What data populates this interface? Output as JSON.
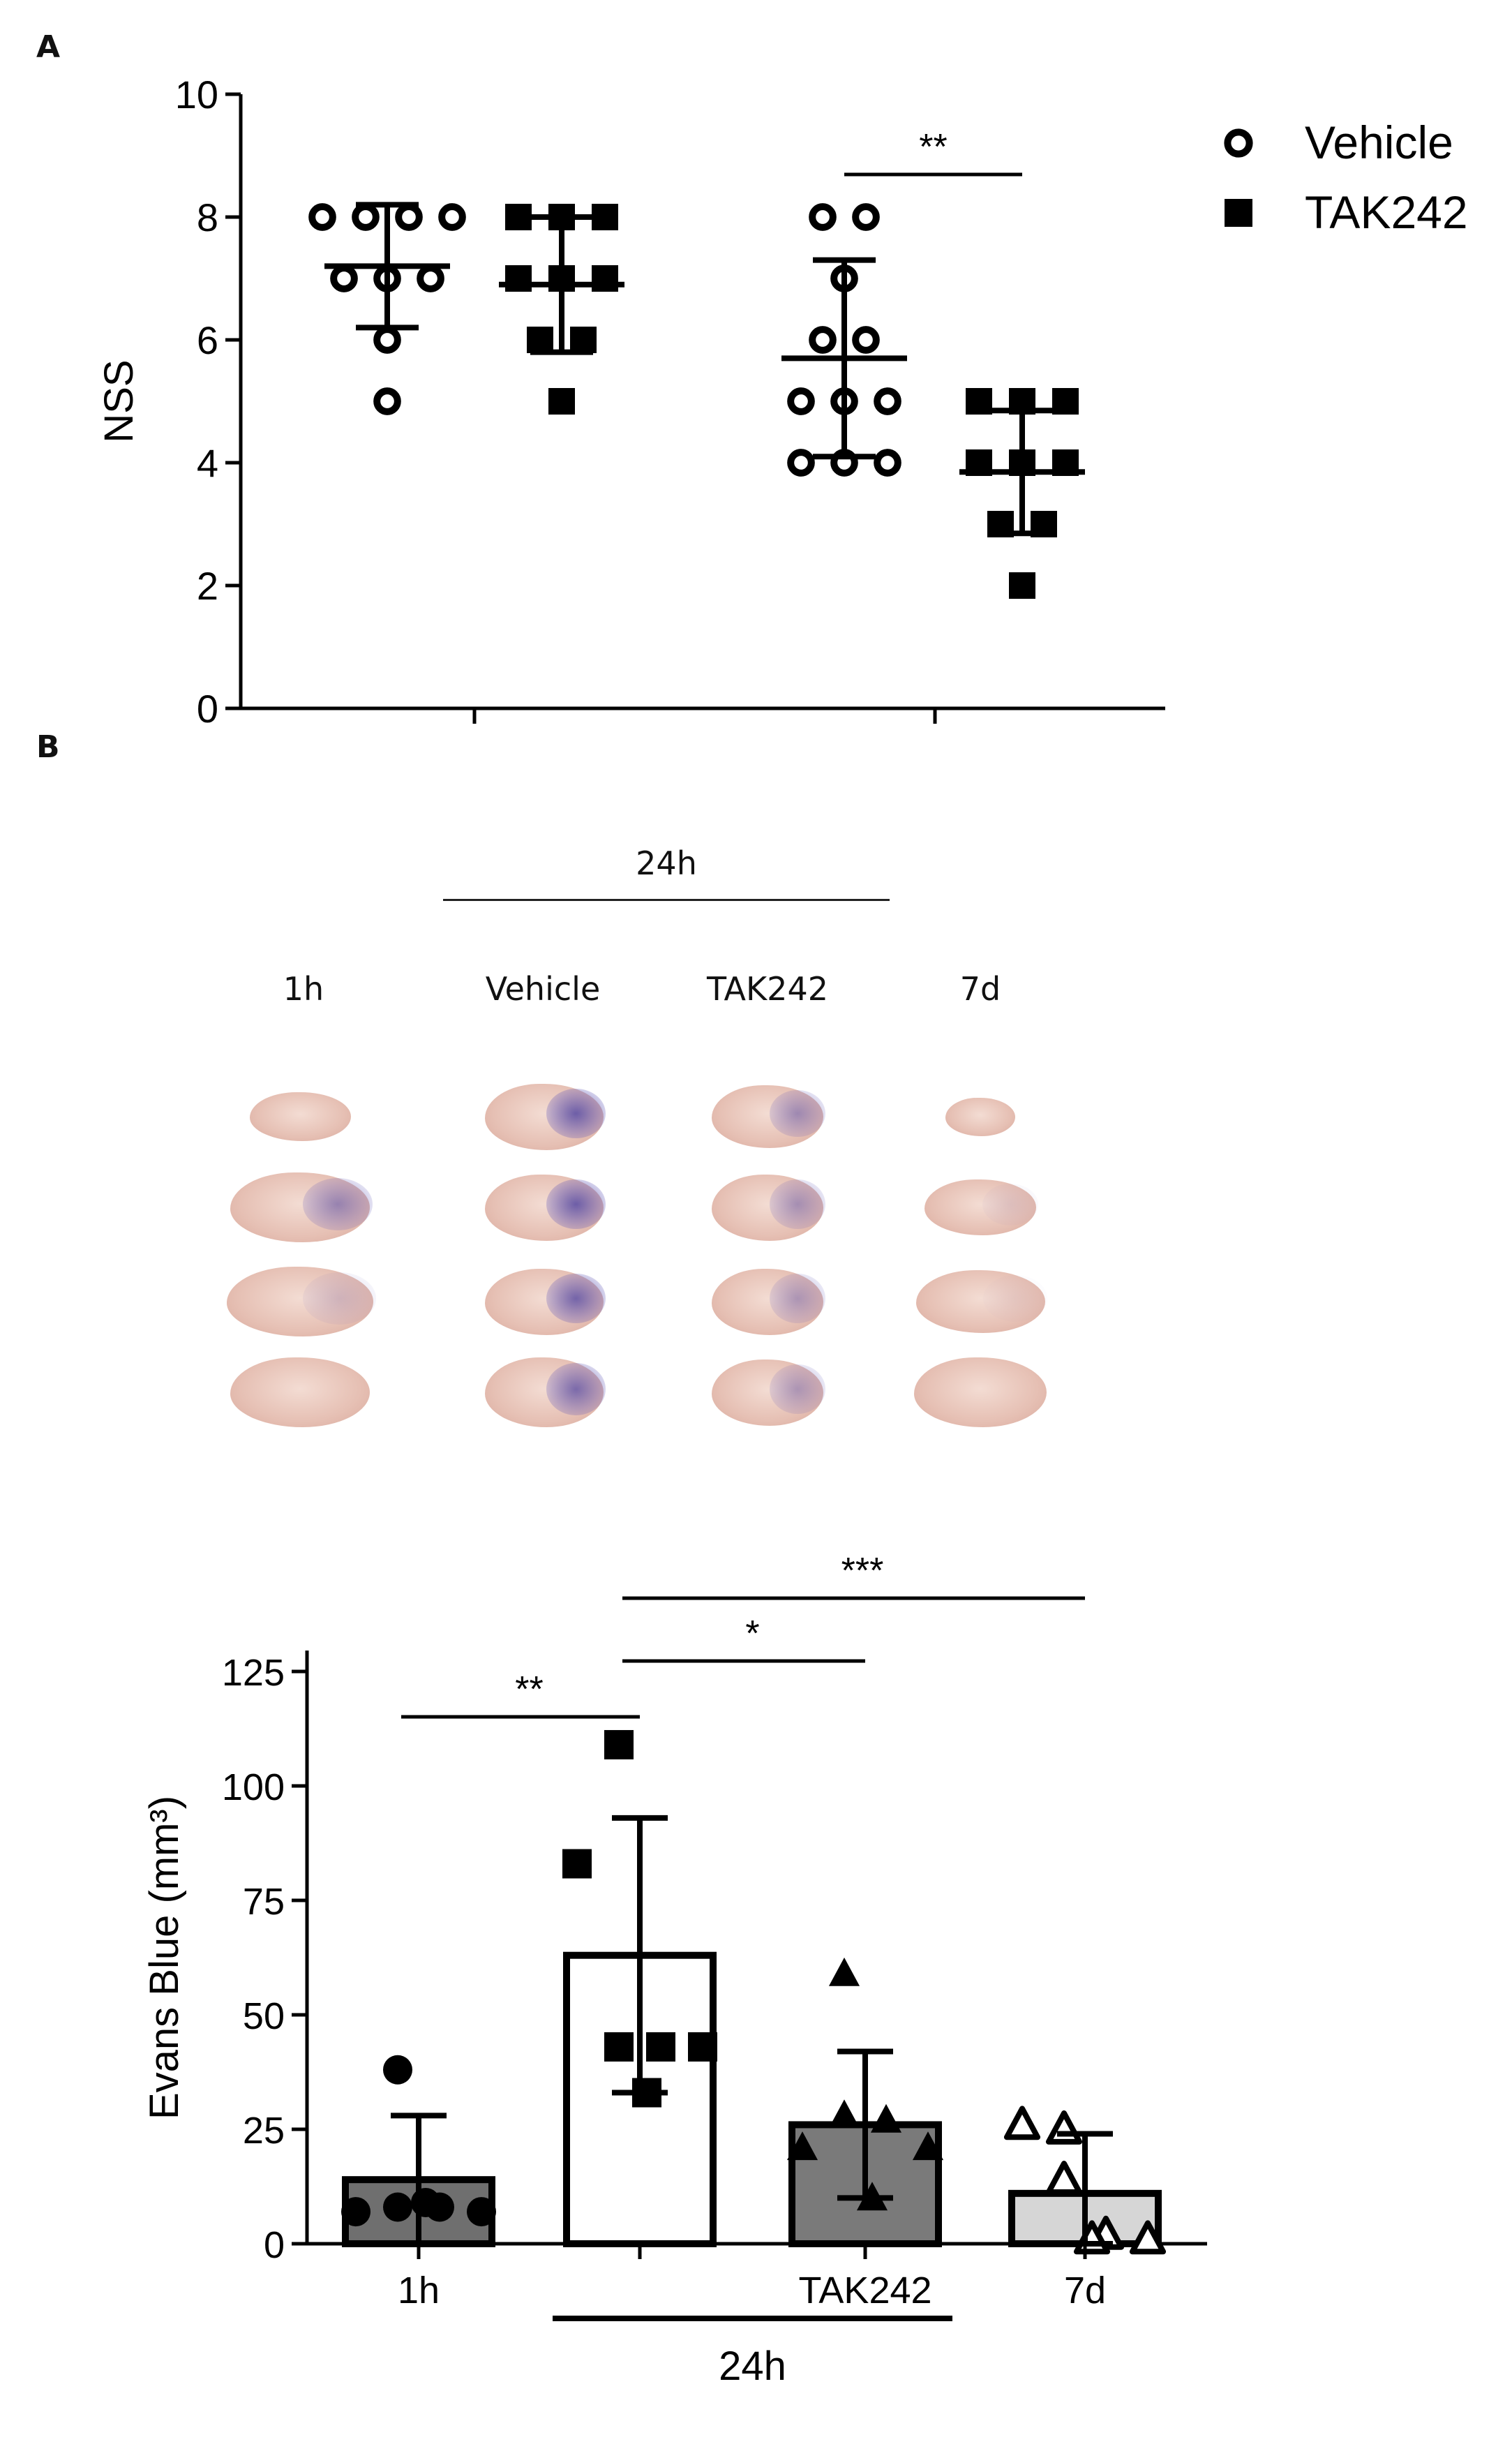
{
  "panels": {
    "a_label": "A",
    "b_label": "B"
  },
  "chart_data": [
    {
      "type": "scatter",
      "title": "",
      "ylabel": "NSS",
      "xlabel": "",
      "ylim": [
        0,
        10
      ],
      "yticks": [
        "0",
        "2",
        "4",
        "6",
        "8",
        "10"
      ],
      "legend": {
        "placement": "top-right",
        "entries": [
          {
            "name": "Vehicle",
            "marker": "open-circle"
          },
          {
            "name": "TAK242",
            "marker": "filled-square"
          }
        ]
      },
      "groups": [
        {
          "series": "Vehicle",
          "time": "early",
          "points": [
            8,
            8,
            8,
            8,
            7,
            7,
            7,
            6,
            5
          ],
          "mean": 7.2,
          "sd": 1.0
        },
        {
          "series": "TAK242",
          "time": "early",
          "points": [
            8,
            8,
            8,
            7,
            7,
            7,
            6,
            6,
            5
          ],
          "mean": 6.9,
          "sd": 1.1
        },
        {
          "series": "Vehicle",
          "time": "late",
          "points": [
            8,
            8,
            7,
            6,
            6,
            5,
            5,
            5,
            4,
            4,
            4
          ],
          "mean": 5.7,
          "sd": 1.6
        },
        {
          "series": "TAK242",
          "time": "late",
          "points": [
            5,
            5,
            5,
            4,
            4,
            4,
            3,
            3,
            2
          ],
          "mean": 3.85,
          "sd": 1.0
        }
      ],
      "significance": [
        {
          "label": "**",
          "between": [
            2,
            3
          ]
        }
      ]
    },
    {
      "type": "bar",
      "title": "",
      "ylabel": "Evans Blue (mm³)",
      "ylim": [
        0,
        125
      ],
      "yticks": [
        "0",
        "25",
        "50",
        "75",
        "100",
        "125"
      ],
      "categories": [
        "1h",
        "",
        "TAK242",
        "7d"
      ],
      "group_label": "24h",
      "group_span": [
        1,
        2
      ],
      "bars": [
        {
          "mean": 14,
          "sd": 14,
          "fill": "#6f6f6f",
          "marker": "filled-circle",
          "points": [
            38,
            7,
            8,
            8,
            7,
            9
          ]
        },
        {
          "mean": 63,
          "sd": 30,
          "fill": "#ffffff",
          "marker": "filled-square",
          "points": [
            109,
            83,
            43,
            43,
            43,
            33
          ]
        },
        {
          "mean": 26,
          "sd": 16,
          "fill": "#7a7a7a",
          "marker": "filled-triangle",
          "points": [
            59,
            21,
            28,
            27,
            21,
            10
          ]
        },
        {
          "mean": 11,
          "sd": 13,
          "fill": "#d6d6d6",
          "marker": "open-triangle",
          "points": [
            25,
            26,
            14,
            2,
            1,
            1
          ]
        }
      ],
      "significance": [
        {
          "label": "**",
          "between": [
            0,
            1
          ]
        },
        {
          "label": "*",
          "between": [
            1,
            2
          ]
        },
        {
          "label": "***",
          "between": [
            1,
            3
          ]
        }
      ]
    }
  ],
  "brain_images": {
    "group_header": "24h",
    "columns": [
      "1h",
      "Vehicle",
      "TAK242",
      "7d"
    ]
  }
}
